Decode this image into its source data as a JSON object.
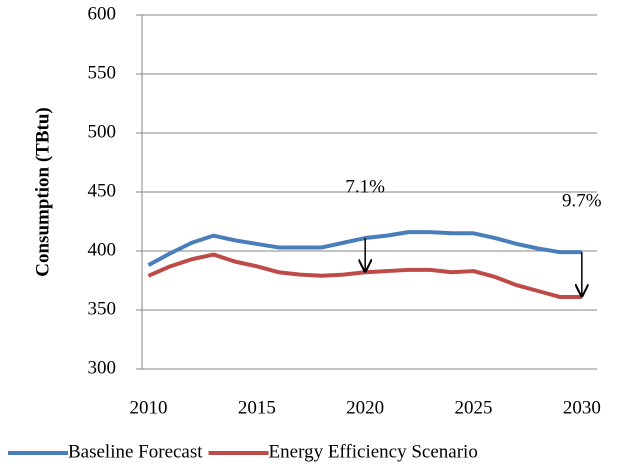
{
  "chart_data": {
    "type": "line",
    "y_label": "Consumption (TBtu)",
    "x": [
      2010,
      2011,
      2012,
      2013,
      2014,
      2015,
      2016,
      2017,
      2018,
      2019,
      2020,
      2021,
      2022,
      2023,
      2024,
      2025,
      2026,
      2027,
      2028,
      2029,
      2030
    ],
    "series": [
      {
        "name": "Baseline Forecast",
        "color": "#4a7ebb",
        "values": [
          388,
          398,
          407,
          413,
          409,
          406,
          403,
          403,
          403,
          407,
          411,
          413,
          416,
          416,
          415,
          415,
          411,
          406,
          402,
          399,
          399
        ]
      },
      {
        "name": "Energy Efficiency Scenario",
        "color": "#be4b48",
        "values": [
          379,
          387,
          393,
          397,
          391,
          387,
          382,
          380,
          379,
          380,
          382,
          383,
          384,
          384,
          382,
          383,
          378,
          371,
          366,
          361,
          361
        ]
      }
    ],
    "annotations": [
      {
        "text": "7.1%",
        "x": 2020
      },
      {
        "text": "9.7%",
        "x": 2030
      }
    ],
    "xlim": [
      2009.7,
      2030.7
    ],
    "xticks": [
      2010,
      2015,
      2020,
      2025,
      2030
    ],
    "ylim": [
      300,
      600
    ],
    "yticks": [
      300,
      350,
      400,
      450,
      500,
      550,
      600
    ],
    "grid": true,
    "legend": "bottom"
  }
}
